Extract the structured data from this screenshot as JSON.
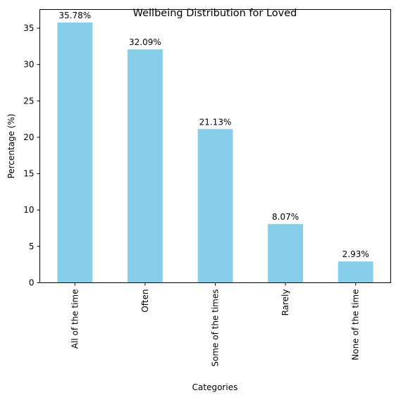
{
  "chart_data": {
    "type": "bar",
    "title": "Wellbeing Distribution for Loved",
    "xlabel": "Categories",
    "ylabel": "Percentage (%)",
    "categories": [
      "All of the time",
      "Often",
      "Some of the times",
      "Rarely",
      "None of the time"
    ],
    "values": [
      35.78,
      32.09,
      21.13,
      8.07,
      2.93
    ],
    "data_labels": [
      "35.78%",
      "32.09%",
      "21.13%",
      "8.07%",
      "2.93%"
    ],
    "yticks": [
      0,
      5,
      10,
      15,
      20,
      25,
      30,
      35
    ],
    "ylim": [
      0,
      37.57
    ],
    "bar_color": "#87ceeb",
    "grid": false,
    "legend": "none"
  }
}
